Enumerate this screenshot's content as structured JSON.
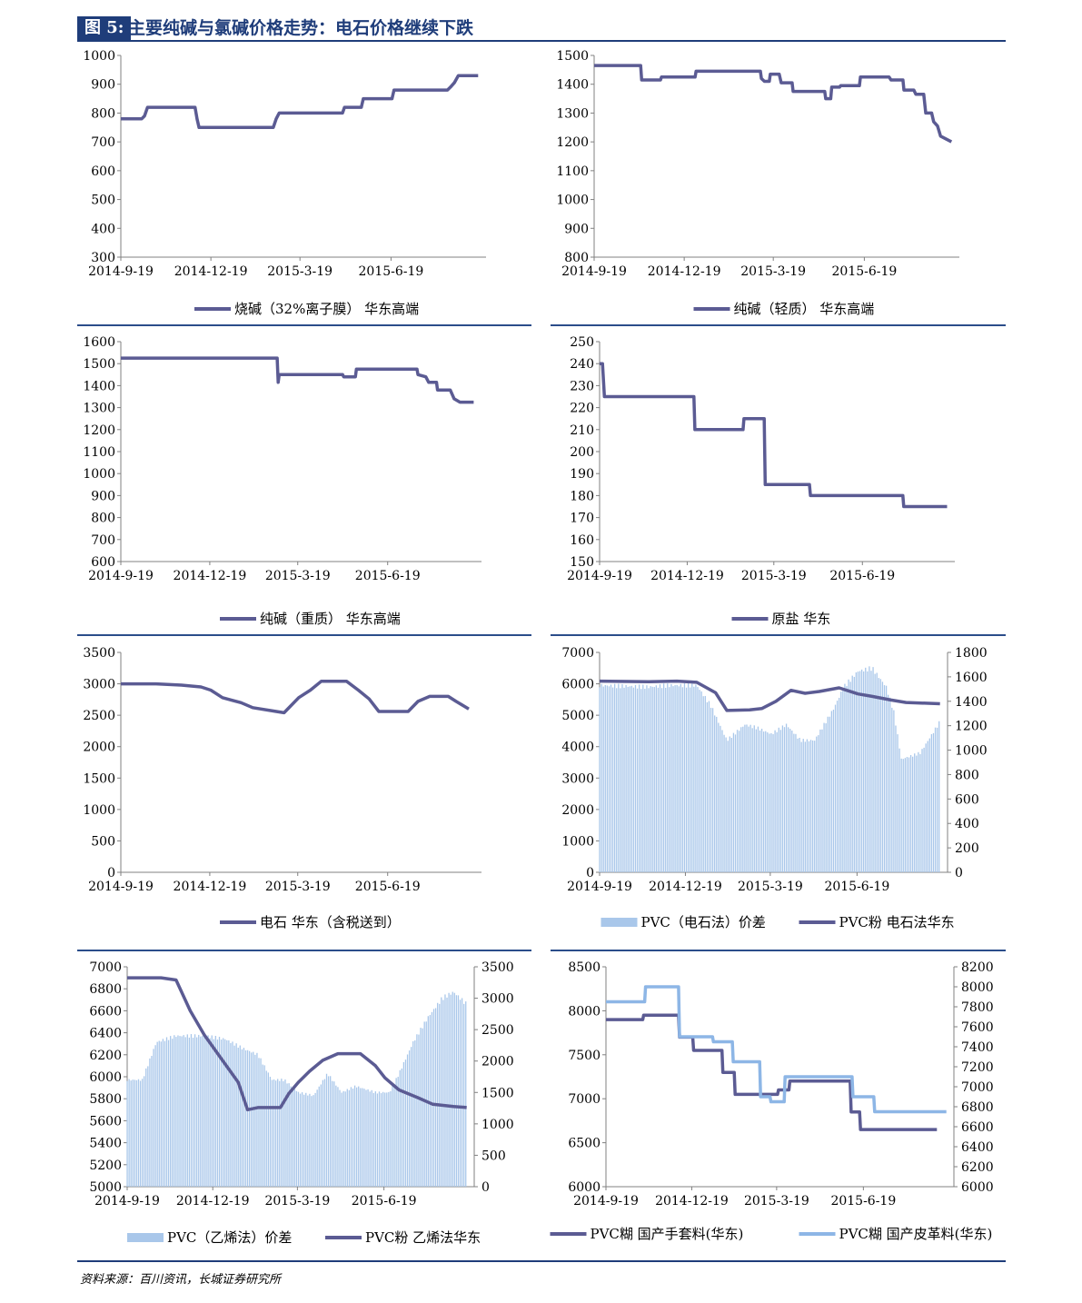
{
  "figure": {
    "tag": "图 5:",
    "title": "主要纯碱与氯碱价格走势：电石价格继续下跌"
  },
  "source": "资料来源：百川资讯，长城证券研究所",
  "colors": {
    "line": "#5b5b93",
    "bar": "#a9c7ea",
    "light_line": "#8db6e6",
    "axis": "#808080",
    "rule": "#1f3d7a"
  },
  "chart_data": [
    {
      "type": "line",
      "x_ticks": [
        "2014-9-19",
        "2014-12-19",
        "2015-3-19",
        "2015-6-19"
      ],
      "ylim": [
        300,
        1000
      ],
      "y_ticks": [
        "1000",
        "900",
        "800",
        "700",
        "600",
        "500",
        "400",
        "300"
      ],
      "series": [
        {
          "name": "烧碱（32%离子膜） 华东高端",
          "x": [
            "2014-9-19",
            "2014-10-10",
            "2014-10-13",
            "2014-10-16",
            "2014-12-03",
            "2014-12-05",
            "2014-12-07",
            "2015-2-20",
            "2015-2-23",
            "2015-2-26",
            "2015-5-01",
            "2015-5-03",
            "2015-5-20",
            "2015-5-22",
            "2015-6-20",
            "2015-6-22",
            "2015-8-15",
            "2015-8-18",
            "2015-8-22",
            "2015-8-26",
            "2015-9-15"
          ],
          "values": [
            780,
            780,
            790,
            820,
            820,
            780,
            750,
            750,
            780,
            800,
            800,
            820,
            820,
            850,
            850,
            880,
            880,
            890,
            905,
            930,
            930
          ]
        }
      ]
    },
    {
      "type": "line",
      "x_ticks": [
        "2014-9-19",
        "2014-12-19",
        "2015-3-19",
        "2015-6-19"
      ],
      "ylim": [
        800,
        1500
      ],
      "y_ticks": [
        "1500",
        "1400",
        "1300",
        "1200",
        "1100",
        "1000",
        "900",
        "800"
      ],
      "series": [
        {
          "name": "纯碱（轻质） 华东高端",
          "x": [
            "2014-9-19",
            "2014-11-05",
            "2014-11-06",
            "2014-11-25",
            "2014-11-26",
            "2014-12-30",
            "2014-12-31",
            "2015-3-06",
            "2015-3-07",
            "2015-3-10",
            "2015-3-15",
            "2015-3-16",
            "2015-3-25",
            "2015-3-27",
            "2015-4-07",
            "2015-4-08",
            "2015-5-10",
            "2015-5-11",
            "2015-5-16",
            "2015-5-17",
            "2015-5-25",
            "2015-5-26",
            "2015-6-14",
            "2015-6-15",
            "2015-7-14",
            "2015-7-16",
            "2015-7-28",
            "2015-7-29",
            "2015-8-08",
            "2015-8-10",
            "2015-8-18",
            "2015-8-20",
            "2015-8-26",
            "2015-8-28",
            "2015-9-01",
            "2015-9-04",
            "2015-9-15"
          ],
          "values": [
            1465,
            1465,
            1415,
            1415,
            1425,
            1425,
            1445,
            1445,
            1420,
            1410,
            1410,
            1435,
            1435,
            1405,
            1405,
            1375,
            1375,
            1350,
            1350,
            1390,
            1390,
            1395,
            1395,
            1425,
            1425,
            1415,
            1415,
            1380,
            1380,
            1365,
            1365,
            1300,
            1300,
            1270,
            1255,
            1220,
            1200
          ]
        }
      ]
    },
    {
      "type": "line",
      "x_ticks": [
        "2014-9-19",
        "2014-12-19",
        "2015-3-19",
        "2015-6-19"
      ],
      "ylim": [
        600,
        1600
      ],
      "y_ticks": [
        "1600",
        "1500",
        "1400",
        "1300",
        "1200",
        "1100",
        "1000",
        "900",
        "800",
        "700",
        "600"
      ],
      "series": [
        {
          "name": "纯碱（重质） 华东高端",
          "x": [
            "2014-9-19",
            "2015-2-26",
            "2015-2-27",
            "2015-2-28",
            "2015-5-04",
            "2015-5-05",
            "2015-5-17",
            "2015-5-18",
            "2015-7-19",
            "2015-7-20",
            "2015-7-28",
            "2015-7-31",
            "2015-8-08",
            "2015-8-09",
            "2015-8-22",
            "2015-8-26",
            "2015-9-01",
            "2015-9-15"
          ],
          "values": [
            1525,
            1525,
            1415,
            1450,
            1450,
            1440,
            1440,
            1475,
            1475,
            1450,
            1440,
            1415,
            1415,
            1380,
            1380,
            1340,
            1325,
            1325
          ]
        }
      ]
    },
    {
      "type": "line",
      "x_ticks": [
        "2014-9-19",
        "2014-12-19",
        "2015-3-19",
        "2015-6-19"
      ],
      "ylim": [
        150,
        250
      ],
      "y_ticks": [
        "250",
        "240",
        "230",
        "220",
        "210",
        "200",
        "190",
        "180",
        "170",
        "160",
        "150"
      ],
      "series": [
        {
          "name": "原盐 华东",
          "x": [
            "2014-9-19",
            "2014-9-22",
            "2014-9-24",
            "2014-12-26",
            "2014-12-27",
            "2015-2-15",
            "2015-2-16",
            "2015-3-09",
            "2015-3-10",
            "2015-4-25",
            "2015-4-26",
            "2015-7-31",
            "2015-8-01",
            "2015-9-15"
          ],
          "values": [
            240,
            240,
            225,
            225,
            210,
            210,
            215,
            215,
            185,
            185,
            180,
            180,
            175,
            175
          ]
        }
      ]
    },
    {
      "type": "line",
      "x_ticks": [
        "2014-9-19",
        "2014-12-19",
        "2015-3-19",
        "2015-6-19"
      ],
      "ylim": [
        0,
        3500
      ],
      "y_ticks": [
        "3500",
        "3000",
        "2500",
        "2000",
        "1500",
        "1000",
        "500",
        "0"
      ],
      "series": [
        {
          "name": "电石 华东（含税送到）",
          "x": [
            "2014-9-19",
            "2014-10-25",
            "2014-11-20",
            "2014-12-10",
            "2014-12-20",
            "2015-1-01",
            "2015-1-20",
            "2015-2-01",
            "2015-2-25",
            "2015-3-05",
            "2015-3-20",
            "2015-4-01",
            "2015-4-12",
            "2015-5-08",
            "2015-5-20",
            "2015-5-31",
            "2015-6-10",
            "2015-7-10",
            "2015-7-20",
            "2015-8-01",
            "2015-8-20",
            "2015-8-28",
            "2015-9-10"
          ],
          "values": [
            3000,
            3000,
            2980,
            2950,
            2900,
            2780,
            2700,
            2620,
            2560,
            2540,
            2780,
            2900,
            3040,
            3040,
            2900,
            2760,
            2560,
            2560,
            2720,
            2800,
            2800,
            2720,
            2600
          ]
        }
      ]
    },
    {
      "type": "bar+line",
      "x_ticks": [
        "2014-9-19",
        "2014-12-19",
        "2015-3-19",
        "2015-6-19"
      ],
      "ylim": [
        0,
        7000
      ],
      "y_ticks": [
        "7000",
        "6000",
        "5000",
        "4000",
        "3000",
        "2000",
        "1000",
        "0"
      ],
      "y2lim": [
        0,
        1800
      ],
      "y2_ticks": [
        "1800",
        "1600",
        "1400",
        "1200",
        "1000",
        "800",
        "600",
        "400",
        "200",
        "0"
      ],
      "series": [
        {
          "name": "PVC（电石法）价差",
          "axis": "y",
          "kind": "bar",
          "x": [
            "2014-9-19",
            "2014-11-10",
            "2014-12-01",
            "2014-12-31",
            "2015-1-15",
            "2015-2-01",
            "2015-2-20",
            "2015-3-05",
            "2015-3-20",
            "2015-4-05",
            "2015-4-20",
            "2015-5-05",
            "2015-5-25",
            "2015-6-05",
            "2015-6-20",
            "2015-7-05",
            "2015-7-20",
            "2015-7-28",
            "2015-8-05",
            "2015-8-25",
            "2015-9-15"
          ],
          "values": [
            5950,
            5900,
            5950,
            5950,
            5300,
            4200,
            4700,
            4600,
            4400,
            4700,
            4200,
            4200,
            5200,
            5900,
            6400,
            6500,
            5900,
            5100,
            3600,
            3800,
            4800
          ]
        },
        {
          "name": "PVC粉 电石法华东",
          "axis": "y2",
          "kind": "line",
          "x": [
            "2014-9-19",
            "2014-11-10",
            "2014-12-10",
            "2014-12-31",
            "2015-1-20",
            "2015-2-01",
            "2015-2-25",
            "2015-3-10",
            "2015-3-25",
            "2015-4-10",
            "2015-4-25",
            "2015-5-10",
            "2015-5-31",
            "2015-6-20",
            "2015-7-05",
            "2015-7-25",
            "2015-8-10",
            "2015-9-15"
          ],
          "values": [
            1565,
            1560,
            1565,
            1555,
            1470,
            1325,
            1330,
            1340,
            1400,
            1490,
            1465,
            1480,
            1510,
            1460,
            1440,
            1410,
            1390,
            1380
          ]
        }
      ]
    },
    {
      "type": "bar+line",
      "x_ticks": [
        "2014-9-19",
        "2014-12-19",
        "2015-3-19",
        "2015-6-19"
      ],
      "ylim": [
        5000,
        7000
      ],
      "y_ticks": [
        "7000",
        "6800",
        "6600",
        "6400",
        "6200",
        "6000",
        "5800",
        "5600",
        "5400",
        "5200",
        "5000"
      ],
      "y2lim": [
        0,
        3500
      ],
      "y2_ticks": [
        "3500",
        "3000",
        "2500",
        "2000",
        "1500",
        "1000",
        "500",
        "0"
      ],
      "series": [
        {
          "name": "PVC（乙烯法）价差",
          "axis": "y2",
          "kind": "bar",
          "x": [
            "2014-9-19",
            "2014-10-05",
            "2014-10-20",
            "2014-11-10",
            "2014-12-10",
            "2015-1-01",
            "2015-1-20",
            "2015-2-05",
            "2015-2-20",
            "2015-3-05",
            "2015-3-20",
            "2015-4-05",
            "2015-4-20",
            "2015-5-05",
            "2015-5-20",
            "2015-6-10",
            "2015-6-25",
            "2015-7-05",
            "2015-7-20",
            "2015-8-05",
            "2015-8-20",
            "2015-9-01",
            "2015-9-15"
          ],
          "values": [
            1700,
            1700,
            2300,
            2400,
            2400,
            2350,
            2200,
            2100,
            1700,
            1700,
            1500,
            1450,
            1800,
            1500,
            1600,
            1500,
            1500,
            1800,
            2300,
            2700,
            3000,
            3100,
            2900
          ]
        },
        {
          "name": "PVC粉 乙烯法华东",
          "axis": "y",
          "kind": "line",
          "x": [
            "2014-9-19",
            "2014-10-25",
            "2014-11-10",
            "2014-11-25",
            "2014-12-10",
            "2014-12-31",
            "2015-1-15",
            "2015-1-25",
            "2015-2-05",
            "2015-3-01",
            "2015-3-10",
            "2015-3-20",
            "2015-4-01",
            "2015-4-15",
            "2015-5-01",
            "2015-5-25",
            "2015-6-10",
            "2015-6-20",
            "2015-7-05",
            "2015-7-25",
            "2015-8-10",
            "2015-9-01",
            "2015-9-15"
          ],
          "values": [
            6900,
            6900,
            6880,
            6600,
            6380,
            6130,
            5950,
            5700,
            5720,
            5720,
            5850,
            5950,
            6050,
            6150,
            6210,
            6210,
            6100,
            5990,
            5880,
            5810,
            5750,
            5730,
            5720
          ]
        }
      ]
    },
    {
      "type": "line",
      "x_ticks": [
        "2014-9-19",
        "2014-12-19",
        "2015-3-19",
        "2015-6-19"
      ],
      "ylim": [
        6000,
        8500
      ],
      "y_ticks": [
        "8500",
        "8000",
        "7500",
        "7000",
        "6500",
        "6000"
      ],
      "y2lim": [
        6000,
        8200
      ],
      "y2_ticks": [
        "8200",
        "8000",
        "7800",
        "7600",
        "7400",
        "7200",
        "7000",
        "6800",
        "6600",
        "6400",
        "6200",
        "6000"
      ],
      "series": [
        {
          "name": "PVC糊 国产手套料(华东)",
          "axis": "y",
          "x": [
            "2014-9-19",
            "2014-10-28",
            "2014-10-29",
            "2014-12-05",
            "2014-12-06",
            "2014-12-20",
            "2014-12-21",
            "2015-1-20",
            "2015-1-21",
            "2015-2-02",
            "2015-2-03",
            "2015-3-20",
            "2015-3-21",
            "2015-4-01",
            "2015-4-02",
            "2015-6-05",
            "2015-6-06",
            "2015-6-15",
            "2015-6-16",
            "2015-9-05"
          ],
          "values": [
            7900,
            7900,
            7950,
            7950,
            7700,
            7700,
            7550,
            7550,
            7300,
            7300,
            7050,
            7050,
            7100,
            7100,
            7200,
            7200,
            6850,
            6850,
            6650,
            6650
          ]
        },
        {
          "name": "PVC糊 国产皮革料(华东)",
          "axis": "y2",
          "x": [
            "2014-9-19",
            "2014-10-30",
            "2014-10-31",
            "2014-12-05",
            "2014-12-06",
            "2015-1-10",
            "2015-1-11",
            "2015-1-31",
            "2015-2-01",
            "2015-3-01",
            "2015-3-02",
            "2015-3-12",
            "2015-3-13",
            "2015-3-27",
            "2015-3-28",
            "2015-6-07",
            "2015-6-08",
            "2015-6-30",
            "2015-7-01",
            "2015-9-15"
          ],
          "values": [
            7850,
            7850,
            8000,
            8000,
            7500,
            7500,
            7450,
            7450,
            7250,
            7250,
            6900,
            6900,
            6850,
            6850,
            7100,
            7100,
            6900,
            6900,
            6750,
            6750
          ]
        }
      ]
    }
  ]
}
